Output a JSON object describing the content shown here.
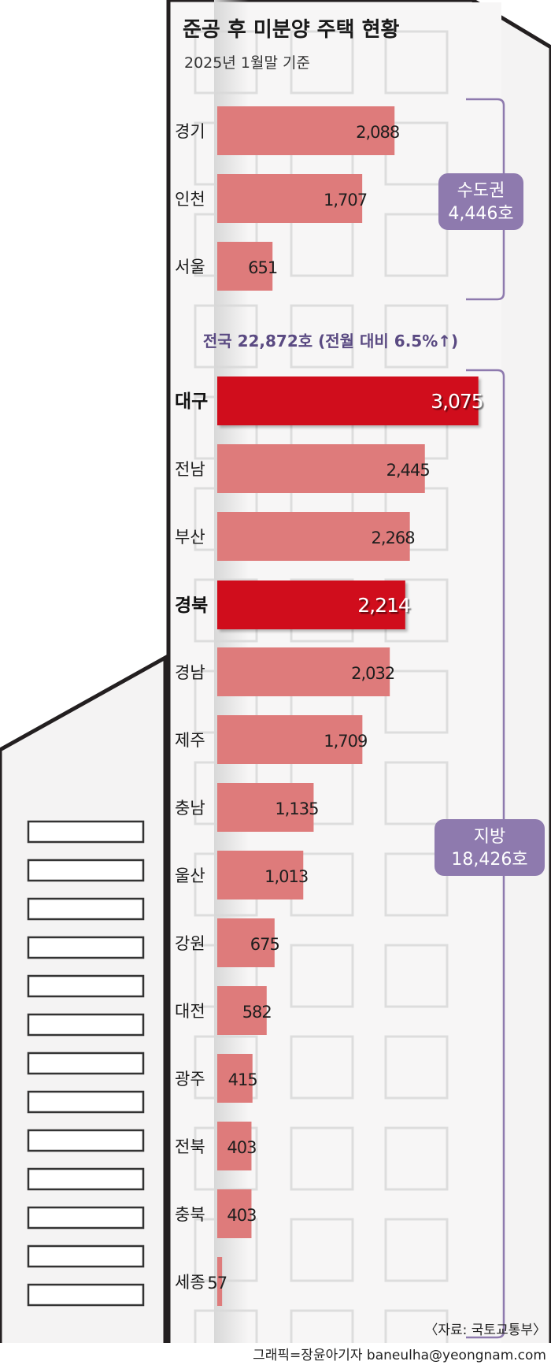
{
  "chart_data": {
    "type": "bar",
    "orientation": "horizontal",
    "title": "준공 후 미분양 주택 현황",
    "subtitle": "2025년 1월말 기준",
    "categories": [
      "경기",
      "인천",
      "서울",
      "대구",
      "전남",
      "부산",
      "경북",
      "경남",
      "제주",
      "충남",
      "울산",
      "강원",
      "대전",
      "광주",
      "전북",
      "충북",
      "세종"
    ],
    "values": [
      2088,
      1707,
      651,
      3075,
      2445,
      2268,
      2214,
      2032,
      1709,
      1135,
      1013,
      675,
      582,
      415,
      403,
      403,
      57
    ],
    "value_labels": [
      "2,088",
      "1,707",
      "651",
      "3,075",
      "2,445",
      "2,268",
      "2,214",
      "2,032",
      "1,709",
      "1,135",
      "1,013",
      "675",
      "582",
      "415",
      "403",
      "403",
      "57"
    ],
    "highlighted": [
      "대구",
      "경북"
    ],
    "xlim": [
      0,
      3300
    ],
    "groups": [
      {
        "label": "수도권",
        "total": "4,446호",
        "members": [
          "경기",
          "인천",
          "서울"
        ]
      },
      {
        "label": "지방",
        "total": "18,426호",
        "members": [
          "대구",
          "전남",
          "부산",
          "경북",
          "경남",
          "제주",
          "충남",
          "울산",
          "강원",
          "대전",
          "광주",
          "전북",
          "충북",
          "세종"
        ]
      }
    ],
    "annotation": "전국 22,872호 (전월 대비 6.5%↑)",
    "colors": {
      "bar": "#de7b7b",
      "highlight": "#d0101c",
      "bracket": "#8e7aae",
      "pill": "#8e7aae",
      "annotation": "#5a4a82"
    }
  },
  "source": "〈자료: 국토교통부〉",
  "credit": "그래픽=장윤아기자 baneulha@yeongnam.com"
}
